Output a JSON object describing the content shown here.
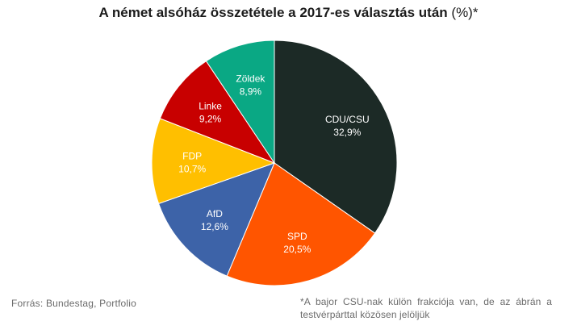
{
  "title": {
    "main": "A német alsóház összetétele a 2017-es választás után",
    "suffix": "(%)*"
  },
  "source": "Forrás:  Bundestag,  Portfolio",
  "footnote": "*A bajor CSU-nak külön frakciója van, de az ábrán a testvérpárttal közösen jelöljük",
  "chart_data": {
    "type": "pie",
    "title": "A német alsóház összetétele a 2017-es választás után (%)*",
    "series": [
      {
        "name": "CDU/CSU",
        "value": 32.9,
        "label": "32,9%",
        "color": "#1c2a26"
      },
      {
        "name": "SPD",
        "value": 20.5,
        "label": "20,5%",
        "color": "#ff5500"
      },
      {
        "name": "AfD",
        "value": 12.6,
        "label": "12,6%",
        "color": "#3d63a8"
      },
      {
        "name": "FDP",
        "value": 10.7,
        "label": "10,7%",
        "color": "#ffbf00"
      },
      {
        "name": "Linke",
        "value": 9.2,
        "label": "9,2%",
        "color": "#c80000"
      },
      {
        "name": "Zöldek",
        "value": 8.9,
        "label": "8,9%",
        "color": "#0aa884"
      }
    ]
  }
}
